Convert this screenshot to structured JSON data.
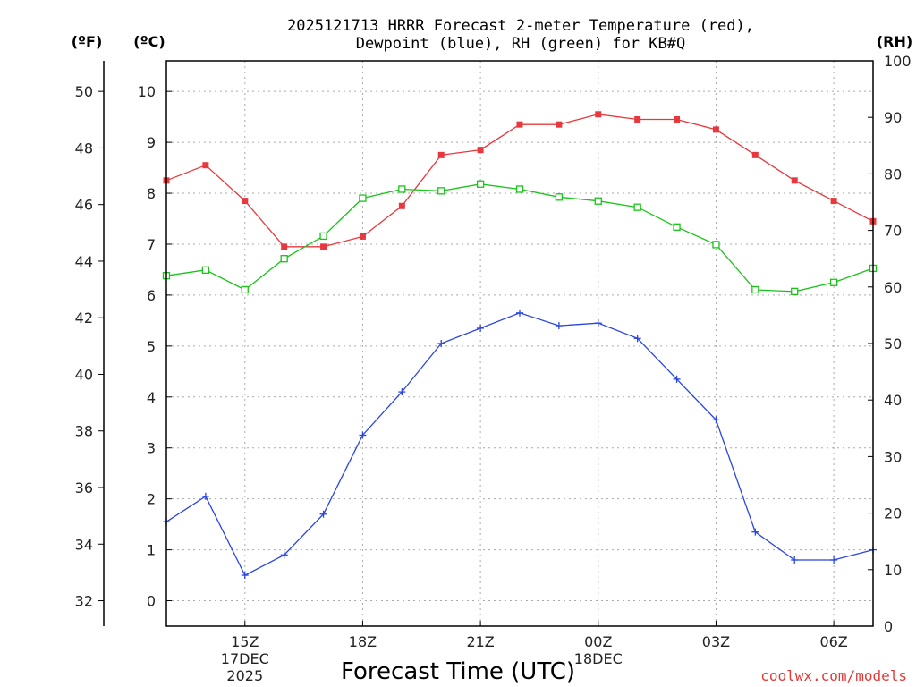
{
  "chart_data": {
    "type": "line",
    "title_line1": "2025121713 HRRR Forecast 2-meter Temperature (red),",
    "title_line2": "Dewpoint (blue), RH (green) for KB#Q",
    "xlabel": "Forecast Time (UTC)",
    "credit": "coolwx.com/models",
    "units": {
      "fahrenheit": "(ºF)",
      "celsius": "(ºC)",
      "rh": "(RH)"
    },
    "x_hours": [
      13,
      14,
      15,
      16,
      17,
      18,
      19,
      20,
      21,
      22,
      23,
      24,
      25,
      26,
      27,
      28,
      29,
      30,
      31
    ],
    "xlim": [
      13,
      31
    ],
    "x_ticks": [
      {
        "hour": 15,
        "label": "15Z",
        "sub1": "17DEC",
        "sub2": "2025"
      },
      {
        "hour": 18,
        "label": "18Z",
        "sub1": "",
        "sub2": ""
      },
      {
        "hour": 21,
        "label": "21Z",
        "sub1": "",
        "sub2": ""
      },
      {
        "hour": 24,
        "label": "00Z",
        "sub1": "18DEC",
        "sub2": ""
      },
      {
        "hour": 27,
        "label": "03Z",
        "sub1": "",
        "sub2": ""
      },
      {
        "hour": 30,
        "label": "06Z",
        "sub1": "",
        "sub2": ""
      }
    ],
    "celsius_ylim": [
      -0.5,
      10.6
    ],
    "celsius_ticks": [
      "0",
      "1",
      "2",
      "3",
      "4",
      "5",
      "6",
      "7",
      "8",
      "9",
      "10"
    ],
    "fahrenheit_ticks": [
      "32",
      "34",
      "36",
      "38",
      "40",
      "42",
      "44",
      "46",
      "48",
      "50"
    ],
    "rh_ylim": [
      0,
      100
    ],
    "rh_ticks": [
      "0",
      "10",
      "20",
      "30",
      "40",
      "50",
      "60",
      "70",
      "80",
      "90",
      "100"
    ],
    "series": [
      {
        "name": "Temperature",
        "axis": "celsius",
        "color": "#e8383d",
        "marker": "filled-square",
        "values": [
          8.25,
          8.55,
          7.85,
          6.95,
          6.95,
          7.15,
          7.75,
          8.75,
          8.85,
          9.35,
          9.35,
          9.55,
          9.45,
          9.45,
          9.25,
          8.75,
          8.25,
          7.85,
          7.45
        ]
      },
      {
        "name": "Dewpoint",
        "axis": "celsius",
        "color": "#2b45e0",
        "marker": "plus",
        "values": [
          1.55,
          2.05,
          0.5,
          0.9,
          1.7,
          3.25,
          4.1,
          5.05,
          5.35,
          5.65,
          5.4,
          5.45,
          5.15,
          4.35,
          3.55,
          1.35,
          0.8,
          0.8,
          1.0
        ]
      },
      {
        "name": "RH",
        "axis": "rh",
        "color": "#19c419",
        "marker": "open-square",
        "values": [
          62,
          63,
          59.5,
          65,
          69,
          75.7,
          77.3,
          77,
          78.2,
          77.3,
          75.9,
          75.2,
          74.1,
          70.6,
          67.5,
          59.5,
          59.2,
          60.8,
          63.3
        ]
      }
    ]
  }
}
